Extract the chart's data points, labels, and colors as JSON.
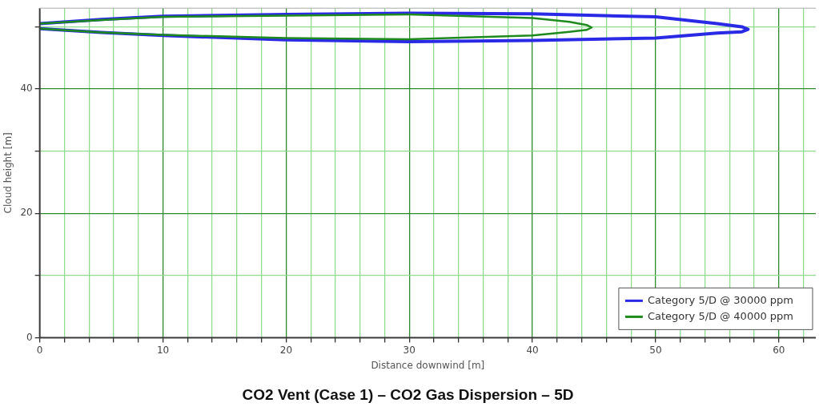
{
  "chart_data": {
    "type": "line",
    "title": "CO2 Vent (Case 1) – CO2 Gas Dispersion – 5D",
    "xlabel": "Distance downwind [m]",
    "ylabel": "Cloud height [m]",
    "xlim": [
      0,
      63
    ],
    "ylim": [
      0,
      53
    ],
    "xticks": [
      0,
      {
        "value": 2,
        "label": null
      },
      {
        "value": 4,
        "label": null
      },
      {
        "value": 6,
        "label": null
      },
      {
        "value": 8,
        "label": null
      },
      10,
      {
        "value": 12,
        "label": null
      },
      {
        "value": 14,
        "label": null
      },
      {
        "value": 16,
        "label": null
      },
      {
        "value": 18,
        "label": null
      },
      20,
      {
        "value": 22,
        "label": null
      },
      {
        "value": 24,
        "label": null
      },
      {
        "value": 26,
        "label": null
      },
      {
        "value": 28,
        "label": null
      },
      30,
      {
        "value": 32,
        "label": null
      },
      {
        "value": 34,
        "label": null
      },
      {
        "value": 36,
        "label": null
      },
      {
        "value": 38,
        "label": null
      },
      40,
      {
        "value": 42,
        "label": null
      },
      {
        "value": 44,
        "label": null
      },
      {
        "value": 46,
        "label": null
      },
      {
        "value": 48,
        "label": null
      },
      50,
      {
        "value": 52,
        "label": null
      },
      {
        "value": 54,
        "label": null
      },
      {
        "value": 56,
        "label": null
      },
      {
        "value": 58,
        "label": null
      },
      60,
      {
        "value": 62,
        "label": null
      }
    ],
    "yticks": [
      0,
      {
        "value": 10,
        "label": null
      },
      20,
      {
        "value": 30,
        "label": null
      },
      40,
      {
        "value": 50,
        "label": null
      }
    ],
    "grid": true,
    "legend": "bottom right",
    "marker": "none",
    "line_style": "solid",
    "series": [
      {
        "name": "Category 5/D @ 30000 ppm",
        "color": "#2a2ae6",
        "x": [
          0,
          5,
          10,
          20,
          30,
          40,
          50,
          55,
          57,
          57.5,
          57,
          55,
          50,
          40,
          30,
          20,
          10,
          5,
          0
        ],
        "values": [
          50.5,
          51.2,
          51.7,
          52.0,
          52.2,
          52.1,
          51.6,
          50.5,
          50.0,
          49.6,
          49.2,
          49.0,
          48.2,
          47.8,
          47.6,
          47.9,
          48.6,
          49.1,
          49.7
        ]
      },
      {
        "name": "Category 5/D @ 40000 ppm",
        "color": "#1e8a1e",
        "x": [
          0,
          5,
          10,
          20,
          30,
          40,
          43,
          44.4,
          44.8,
          44.4,
          43,
          40,
          30,
          20,
          10,
          5,
          0
        ],
        "values": [
          50.5,
          51.1,
          51.6,
          51.8,
          52.0,
          51.4,
          50.8,
          50.3,
          49.9,
          49.5,
          49.2,
          48.6,
          48.0,
          48.2,
          48.7,
          49.1,
          49.7
        ]
      }
    ]
  }
}
